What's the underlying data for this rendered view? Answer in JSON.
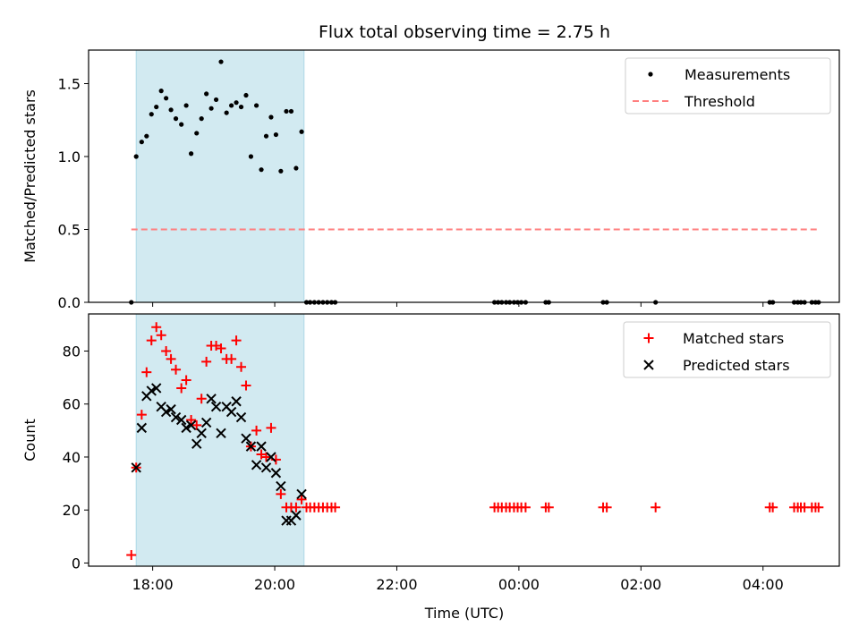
{
  "chart_data": {
    "title": "Flux total observing time = 2.75 h",
    "xlabel": "Time (UTC)",
    "x_unit": "hours",
    "xlim": [
      16.95,
      29.25
    ],
    "xticks": [
      {
        "x": 18,
        "label": "18:00"
      },
      {
        "x": 20,
        "label": "20:00"
      },
      {
        "x": 22,
        "label": "22:00"
      },
      {
        "x": 24,
        "label": "00:00"
      },
      {
        "x": 26,
        "label": "02:00"
      },
      {
        "x": 28,
        "label": "04:00"
      }
    ],
    "shaded_interval": {
      "x": [
        17.73,
        20.48
      ],
      "color": "#add8e6"
    },
    "charts": [
      {
        "type": "scatter",
        "ylabel": "Matched/Predicted stars",
        "ylim": [
          0,
          1.73
        ],
        "yticks": [
          0,
          0.5,
          1.0,
          1.5
        ],
        "ytick_labels": [
          "0.0",
          "0.5",
          "1.0",
          "1.5"
        ],
        "legend_position": "upper-right",
        "series": [
          {
            "name": "Measurements",
            "marker": "dot",
            "color": "#000000",
            "x": [
              17.65,
              17.73,
              17.82,
              17.9,
              17.98,
              18.06,
              18.14,
              18.22,
              18.3,
              18.38,
              18.47,
              18.55,
              18.63,
              18.72,
              18.8,
              18.88,
              18.96,
              19.04,
              19.12,
              19.21,
              19.29,
              19.37,
              19.45,
              19.53,
              19.61,
              19.7,
              19.78,
              19.86,
              19.94,
              20.02,
              20.1,
              20.19,
              20.27,
              20.35,
              20.44,
              20.52,
              20.58,
              20.65,
              20.72,
              20.79,
              20.86,
              20.93,
              20.99,
              23.6,
              23.66,
              23.72,
              23.79,
              23.85,
              23.92,
              23.98,
              24.04,
              24.11,
              24.44,
              24.49,
              25.38,
              25.44,
              26.24,
              28.11,
              28.16,
              28.51,
              28.57,
              28.62,
              28.68,
              28.8,
              28.86,
              28.91
            ],
            "y": [
              0.0,
              1.0,
              1.1,
              1.14,
              1.29,
              1.34,
              1.45,
              1.4,
              1.32,
              1.26,
              1.22,
              1.35,
              1.02,
              1.16,
              1.26,
              1.43,
              1.33,
              1.39,
              1.65,
              1.3,
              1.35,
              1.37,
              1.34,
              1.42,
              1.0,
              1.35,
              0.91,
              1.14,
              1.27,
              1.15,
              0.9,
              1.31,
              1.31,
              0.92,
              1.17,
              0.0,
              0.0,
              0.0,
              0.0,
              0.0,
              0.0,
              0.0,
              0.0,
              0.0,
              0.0,
              0.0,
              0.0,
              0.0,
              0.0,
              0.0,
              0.0,
              0.0,
              0.0,
              0.0,
              0.0,
              0.0,
              0.0,
              0.0,
              0.0,
              0.0,
              0.0,
              0.0,
              0.0,
              0.0,
              0.0,
              0.0
            ]
          },
          {
            "name": "Threshold",
            "marker": "dashed-line",
            "color": "#ff7f7f",
            "x": [
              17.65,
              28.91
            ],
            "y": [
              0.5,
              0.5
            ]
          }
        ]
      },
      {
        "type": "scatter",
        "ylabel": "Count",
        "ylim": [
          -1.2,
          94
        ],
        "yticks": [
          0,
          20,
          40,
          60,
          80
        ],
        "ytick_labels": [
          "0",
          "20",
          "40",
          "60",
          "80"
        ],
        "legend_position": "upper-right",
        "series": [
          {
            "name": "Matched stars",
            "marker": "plus",
            "color": "#ff0000",
            "x": [
              17.65,
              17.73,
              17.82,
              17.9,
              17.98,
              18.06,
              18.14,
              18.22,
              18.3,
              18.38,
              18.47,
              18.55,
              18.63,
              18.72,
              18.8,
              18.88,
              18.96,
              19.04,
              19.12,
              19.21,
              19.29,
              19.37,
              19.45,
              19.53,
              19.61,
              19.7,
              19.78,
              19.86,
              19.94,
              20.02,
              20.1,
              20.19,
              20.27,
              20.35,
              20.44,
              20.52,
              20.58,
              20.65,
              20.72,
              20.79,
              20.86,
              20.93,
              20.99,
              23.6,
              23.66,
              23.72,
              23.79,
              23.85,
              23.92,
              23.98,
              24.04,
              24.11,
              24.44,
              24.49,
              25.38,
              25.44,
              26.24,
              28.11,
              28.16,
              28.51,
              28.57,
              28.62,
              28.68,
              28.8,
              28.86,
              28.91
            ],
            "y": [
              3,
              36,
              56,
              72,
              84,
              89,
              86,
              80,
              77,
              73,
              66,
              69,
              54,
              52,
              62,
              76,
              82,
              82,
              81,
              77,
              77,
              84,
              74,
              67,
              44,
              50,
              41,
              40,
              51,
              39,
              26,
              21,
              21,
              21,
              24,
              21,
              21,
              21,
              21,
              21,
              21,
              21,
              21,
              21,
              21,
              21,
              21,
              21,
              21,
              21,
              21,
              21,
              21,
              21,
              21,
              21,
              21,
              21,
              21,
              21,
              21,
              21,
              21,
              21,
              21,
              21
            ]
          },
          {
            "name": "Predicted stars",
            "marker": "x",
            "color": "#000000",
            "x": [
              17.73,
              17.82,
              17.9,
              17.98,
              18.06,
              18.14,
              18.22,
              18.3,
              18.38,
              18.47,
              18.55,
              18.63,
              18.72,
              18.8,
              18.88,
              18.96,
              19.04,
              19.12,
              19.21,
              19.29,
              19.37,
              19.45,
              19.53,
              19.61,
              19.7,
              19.78,
              19.86,
              19.94,
              20.02,
              20.1,
              20.19,
              20.27,
              20.35,
              20.44
            ],
            "y": [
              36,
              51,
              63,
              65,
              66,
              59,
              57,
              58,
              55,
              54,
              51,
              52,
              45,
              49,
              53,
              62,
              59,
              49,
              59,
              57,
              61,
              55,
              47,
              44,
              37,
              44,
              36,
              40,
              34,
              29,
              16,
              16,
              18,
              26
            ]
          }
        ]
      }
    ]
  }
}
